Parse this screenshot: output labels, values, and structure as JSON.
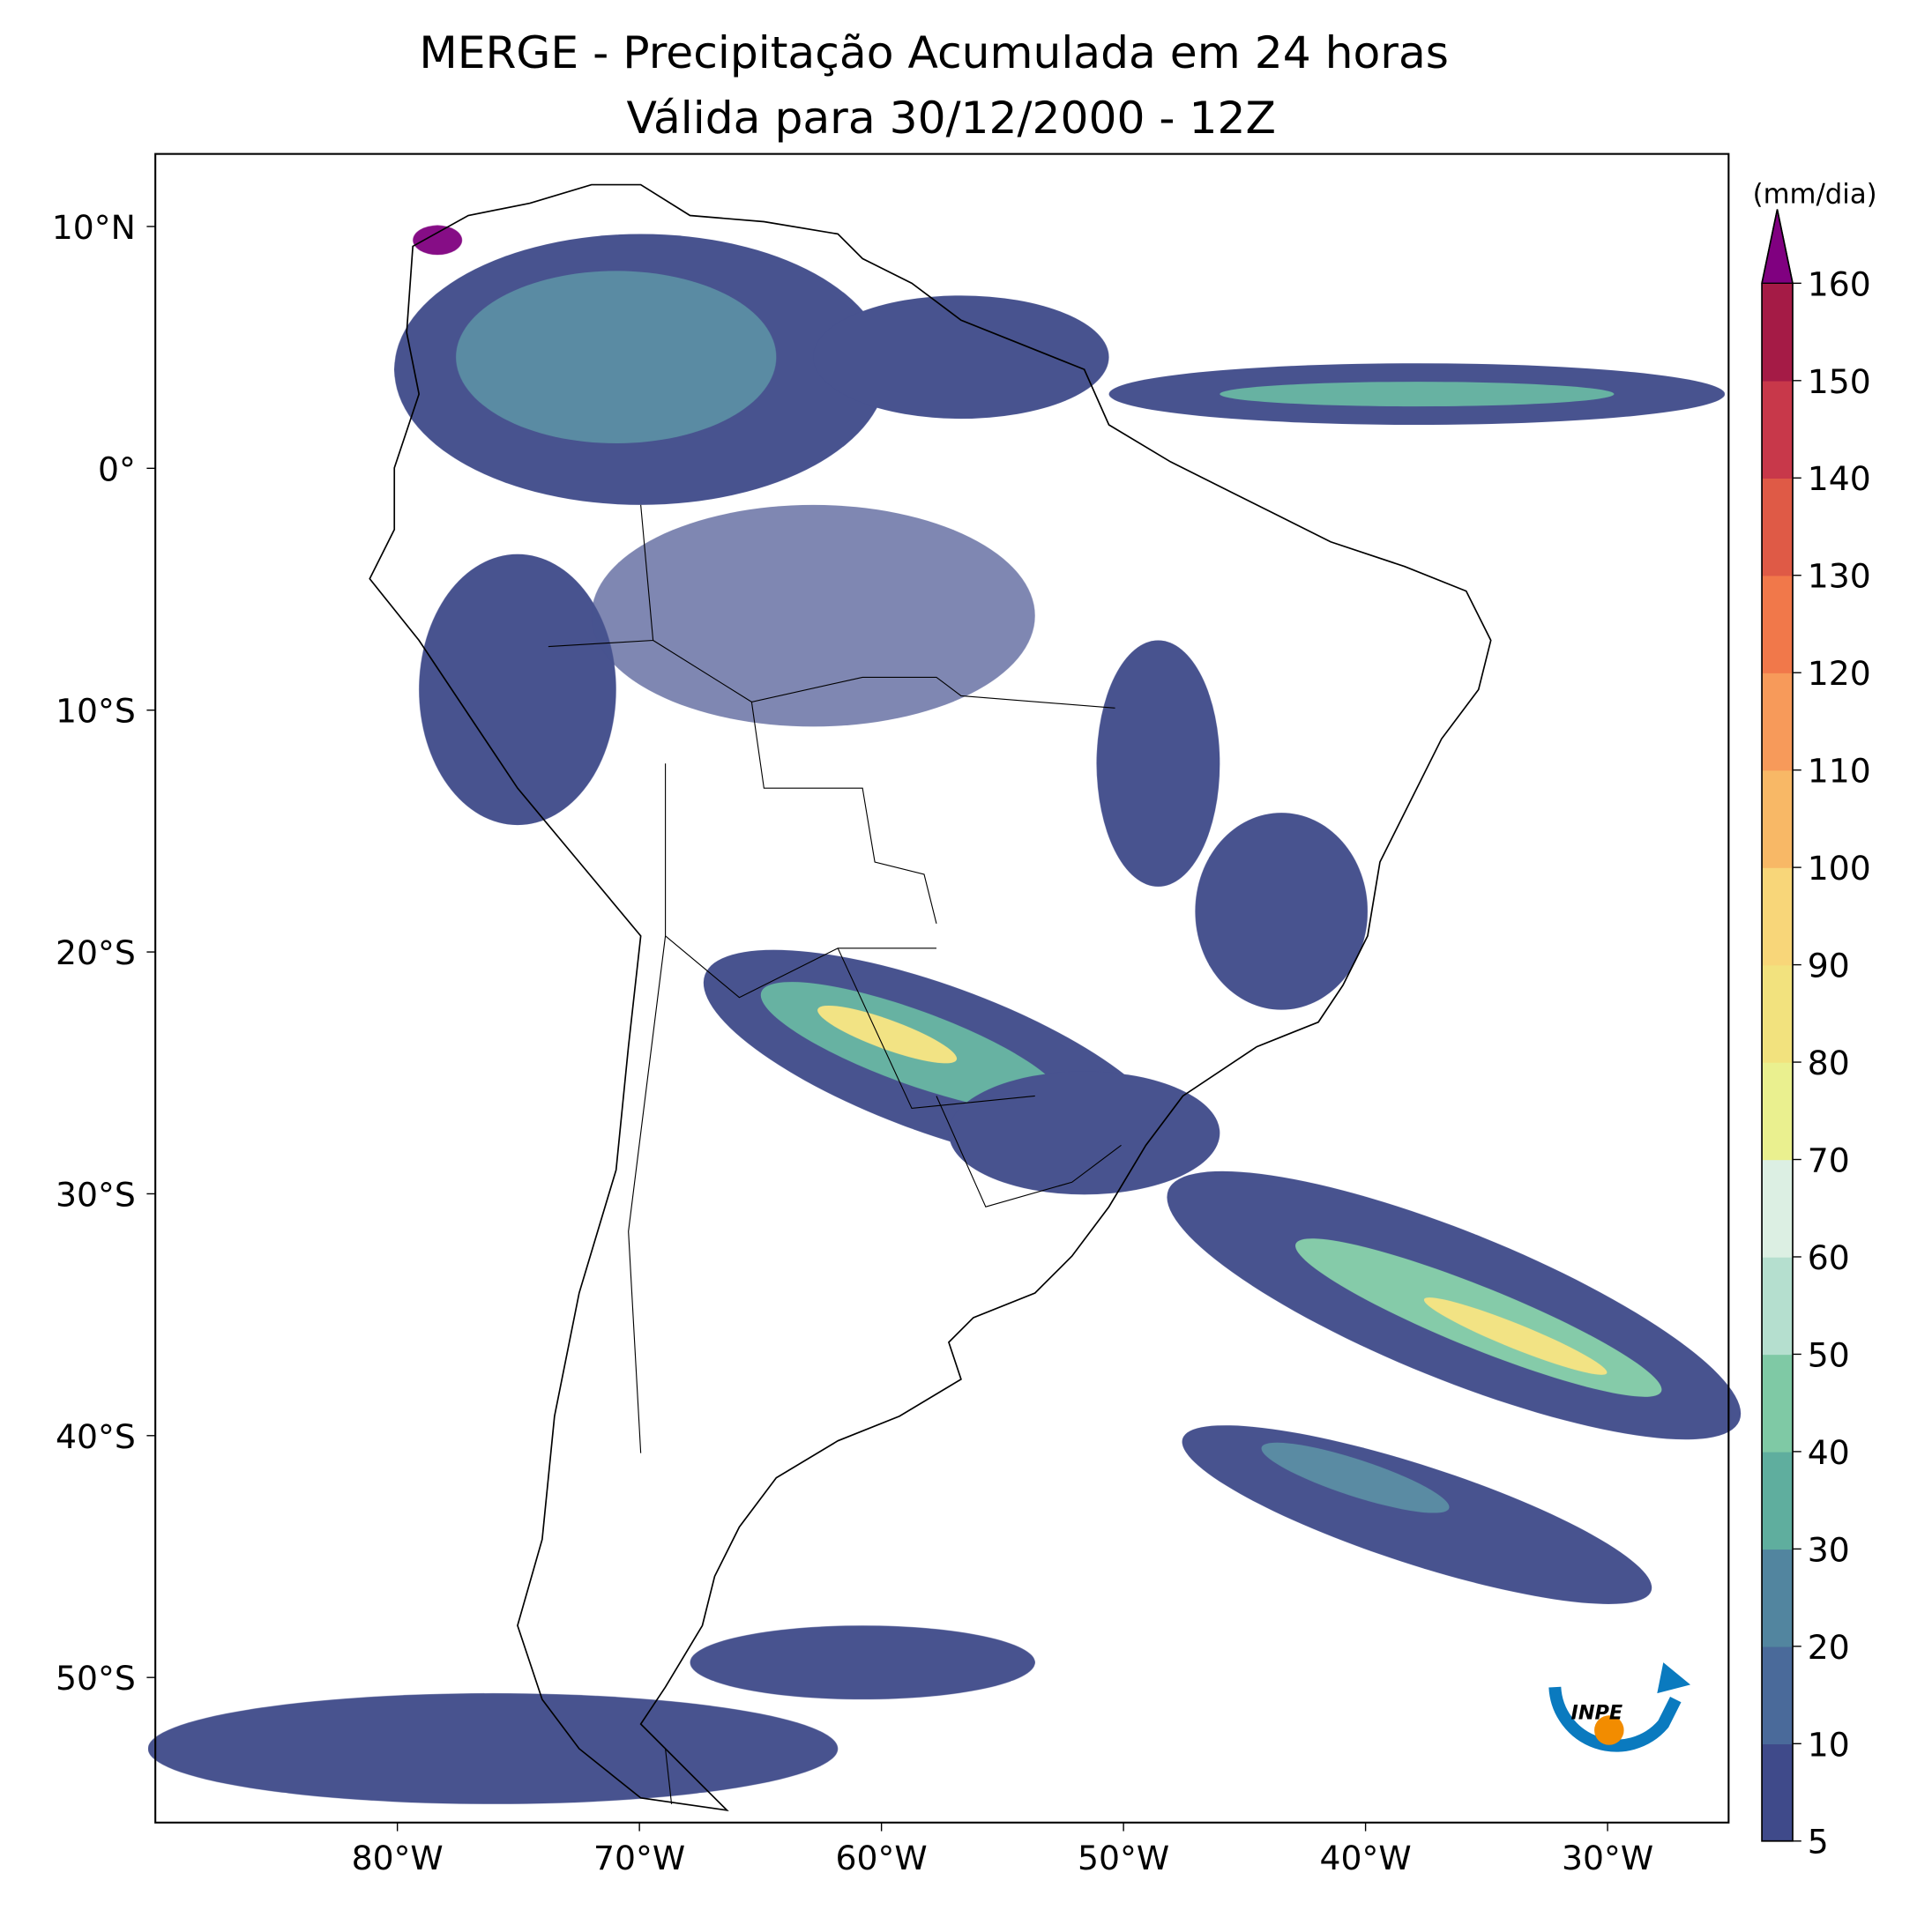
{
  "chart_data": {
    "type": "map",
    "title": "MERGE - Precipitação Acumulada em 24 horas",
    "subtitle": "Válida para 30/12/2000 - 12Z",
    "xlim": [
      -90,
      -25
    ],
    "ylim": [
      -56,
      13
    ],
    "xticks": [
      {
        "value": -80,
        "label": "80°W"
      },
      {
        "value": -70,
        "label": "70°W"
      },
      {
        "value": -60,
        "label": "60°W"
      },
      {
        "value": -50,
        "label": "50°W"
      },
      {
        "value": -40,
        "label": "40°W"
      },
      {
        "value": -30,
        "label": "30°W"
      }
    ],
    "yticks": [
      {
        "value": 10,
        "label": "10°N"
      },
      {
        "value": 0,
        "label": "0°"
      },
      {
        "value": -10,
        "label": "10°S"
      },
      {
        "value": -20,
        "label": "20°S"
      },
      {
        "value": -30,
        "label": "30°S"
      },
      {
        "value": -40,
        "label": "40°S"
      },
      {
        "value": -50,
        "label": "50°S"
      }
    ],
    "colorbar": {
      "label": "(mm/dia)",
      "ticks": [
        5,
        10,
        20,
        30,
        40,
        50,
        60,
        70,
        80,
        90,
        100,
        110,
        120,
        130,
        140,
        150,
        160
      ],
      "colors": [
        "#3f4a8a",
        "#4a6a9a",
        "#52859f",
        "#5fae9e",
        "#7fc9a5",
        "#b5dfcf",
        "#dcefe3",
        "#eaf08f",
        "#f2e27e",
        "#f8d679",
        "#f8b866",
        "#f79a5a",
        "#f1784a",
        "#df5a46",
        "#c8384a",
        "#a51b46"
      ],
      "extend_color": "#800080"
    }
  },
  "logo": {
    "text": "INPE"
  }
}
